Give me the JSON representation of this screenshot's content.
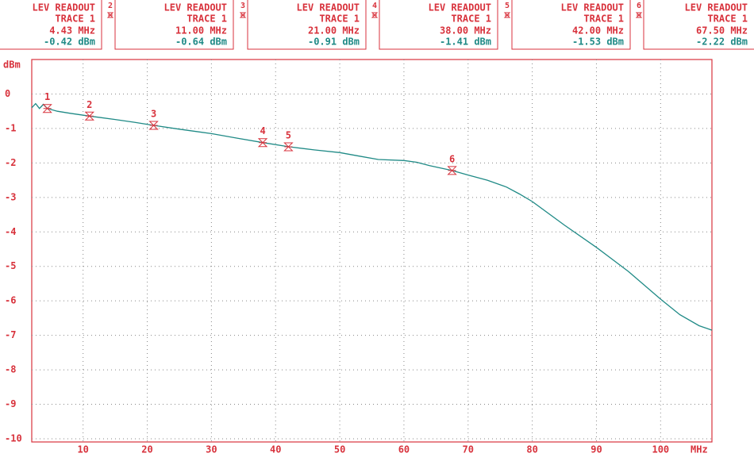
{
  "chart_data": {
    "type": "line",
    "readout_title": "LEV READOUT",
    "trace_label": "TRACE 1",
    "y_label": "dBm",
    "x_label": "MHz",
    "xlim": [
      2,
      108
    ],
    "ylim": [
      -10,
      1
    ],
    "xticks": [
      10,
      20,
      30,
      40,
      50,
      60,
      70,
      80,
      90,
      100
    ],
    "yticks": [
      0,
      -1,
      -2,
      -3,
      -4,
      -5,
      -6,
      -7,
      -8,
      -9,
      -10
    ],
    "grid": true,
    "color": "#1f8a86",
    "x": [
      2,
      2.6,
      3.2,
      3.8,
      4.43,
      6,
      8,
      11,
      15,
      18,
      21,
      25,
      30,
      34,
      38,
      42,
      46,
      50,
      53,
      56,
      60,
      62,
      64,
      67.5,
      70,
      73,
      76,
      78,
      80,
      85,
      90,
      95,
      100,
      103,
      106,
      108
    ],
    "values": [
      -0.4,
      -0.28,
      -0.42,
      -0.3,
      -0.42,
      -0.5,
      -0.56,
      -0.64,
      -0.74,
      -0.82,
      -0.91,
      -1.02,
      -1.15,
      -1.28,
      -1.41,
      -1.53,
      -1.62,
      -1.7,
      -1.8,
      -1.9,
      -1.93,
      -1.98,
      -2.08,
      -2.22,
      -2.35,
      -2.5,
      -2.7,
      -2.9,
      -3.12,
      -3.8,
      -4.45,
      -5.15,
      -5.95,
      -6.4,
      -6.72,
      -6.85
    ],
    "markers": {
      "names": [
        "1",
        "2",
        "3",
        "4",
        "5",
        "6"
      ],
      "x": [
        4.43,
        11,
        21,
        38,
        42,
        67.5
      ],
      "values": [
        -0.42,
        -0.64,
        -0.91,
        -1.41,
        -1.53,
        -2.22
      ],
      "x_labels": [
        "4.43 MHz",
        "11.00 MHz",
        "21.00 MHz",
        "38.00 MHz",
        "42.00 MHz",
        "67.50 MHz"
      ],
      "value_labels": [
        "-0.42 dBm",
        "-0.64 dBm",
        "-0.91 dBm",
        "-1.41 dBm",
        "-1.53 dBm",
        "-2.22 dBm"
      ]
    }
  }
}
